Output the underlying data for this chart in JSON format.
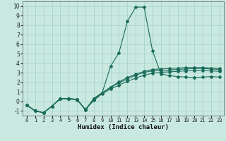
{
  "xlabel": "Humidex (Indice chaleur)",
  "bg_color": "#c8e8e0",
  "grid_color": "#a8d4cc",
  "line_color": "#1a6b5a",
  "xlim": [
    -0.5,
    23.5
  ],
  "ylim": [
    -1.5,
    10.5
  ],
  "xticks": [
    0,
    1,
    2,
    3,
    4,
    5,
    6,
    7,
    8,
    9,
    10,
    11,
    12,
    13,
    14,
    15,
    16,
    17,
    18,
    19,
    20,
    21,
    22,
    23
  ],
  "yticks": [
    -1,
    0,
    1,
    2,
    3,
    4,
    5,
    6,
    7,
    8,
    9,
    10
  ],
  "series": [
    {
      "x": [
        0,
        1,
        2,
        3,
        4,
        5,
        6,
        7,
        8,
        9,
        10,
        11,
        12,
        13,
        14,
        15,
        16,
        17,
        18,
        19,
        20,
        21,
        22,
        23
      ],
      "y": [
        -0.4,
        -1.0,
        -1.2,
        -0.5,
        0.25,
        0.25,
        0.15,
        -0.85,
        0.1,
        0.8,
        1.3,
        1.7,
        2.1,
        2.45,
        2.75,
        2.95,
        3.05,
        3.1,
        3.15,
        3.2,
        3.25,
        3.25,
        3.2,
        3.15
      ]
    },
    {
      "x": [
        0,
        1,
        2,
        3,
        4,
        5,
        6,
        7,
        8,
        9,
        10,
        11,
        12,
        13,
        14,
        15,
        16,
        17,
        18,
        19,
        20,
        21,
        22,
        23
      ],
      "y": [
        -0.4,
        -1.0,
        -1.2,
        -0.5,
        0.3,
        0.3,
        0.2,
        -0.85,
        0.2,
        0.9,
        1.45,
        1.95,
        2.35,
        2.75,
        3.05,
        3.2,
        3.25,
        3.3,
        3.35,
        3.4,
        3.45,
        3.45,
        3.4,
        3.35
      ]
    },
    {
      "x": [
        0,
        1,
        2,
        3,
        4,
        5,
        6,
        7,
        8,
        9,
        10,
        11,
        12,
        13,
        14,
        15,
        16,
        17,
        18,
        19,
        20,
        21,
        22,
        23
      ],
      "y": [
        -0.4,
        -1.0,
        -1.2,
        -0.5,
        0.3,
        0.3,
        0.2,
        -0.9,
        0.3,
        0.9,
        3.7,
        5.1,
        8.4,
        9.9,
        9.9,
        5.3,
        2.9,
        2.7,
        2.6,
        2.55,
        2.5,
        2.55,
        2.6,
        2.55
      ]
    },
    {
      "x": [
        0,
        1,
        2,
        3,
        4,
        5,
        6,
        7,
        8,
        9,
        10,
        11,
        12,
        13,
        14,
        15,
        16,
        17,
        18,
        19,
        20,
        21,
        22,
        23
      ],
      "y": [
        -0.4,
        -1.0,
        -1.2,
        -0.5,
        0.3,
        0.3,
        0.2,
        -0.9,
        0.3,
        0.9,
        1.5,
        2.05,
        2.5,
        2.85,
        3.15,
        3.35,
        3.4,
        3.45,
        3.5,
        3.55,
        3.55,
        3.55,
        3.5,
        3.45
      ]
    }
  ]
}
